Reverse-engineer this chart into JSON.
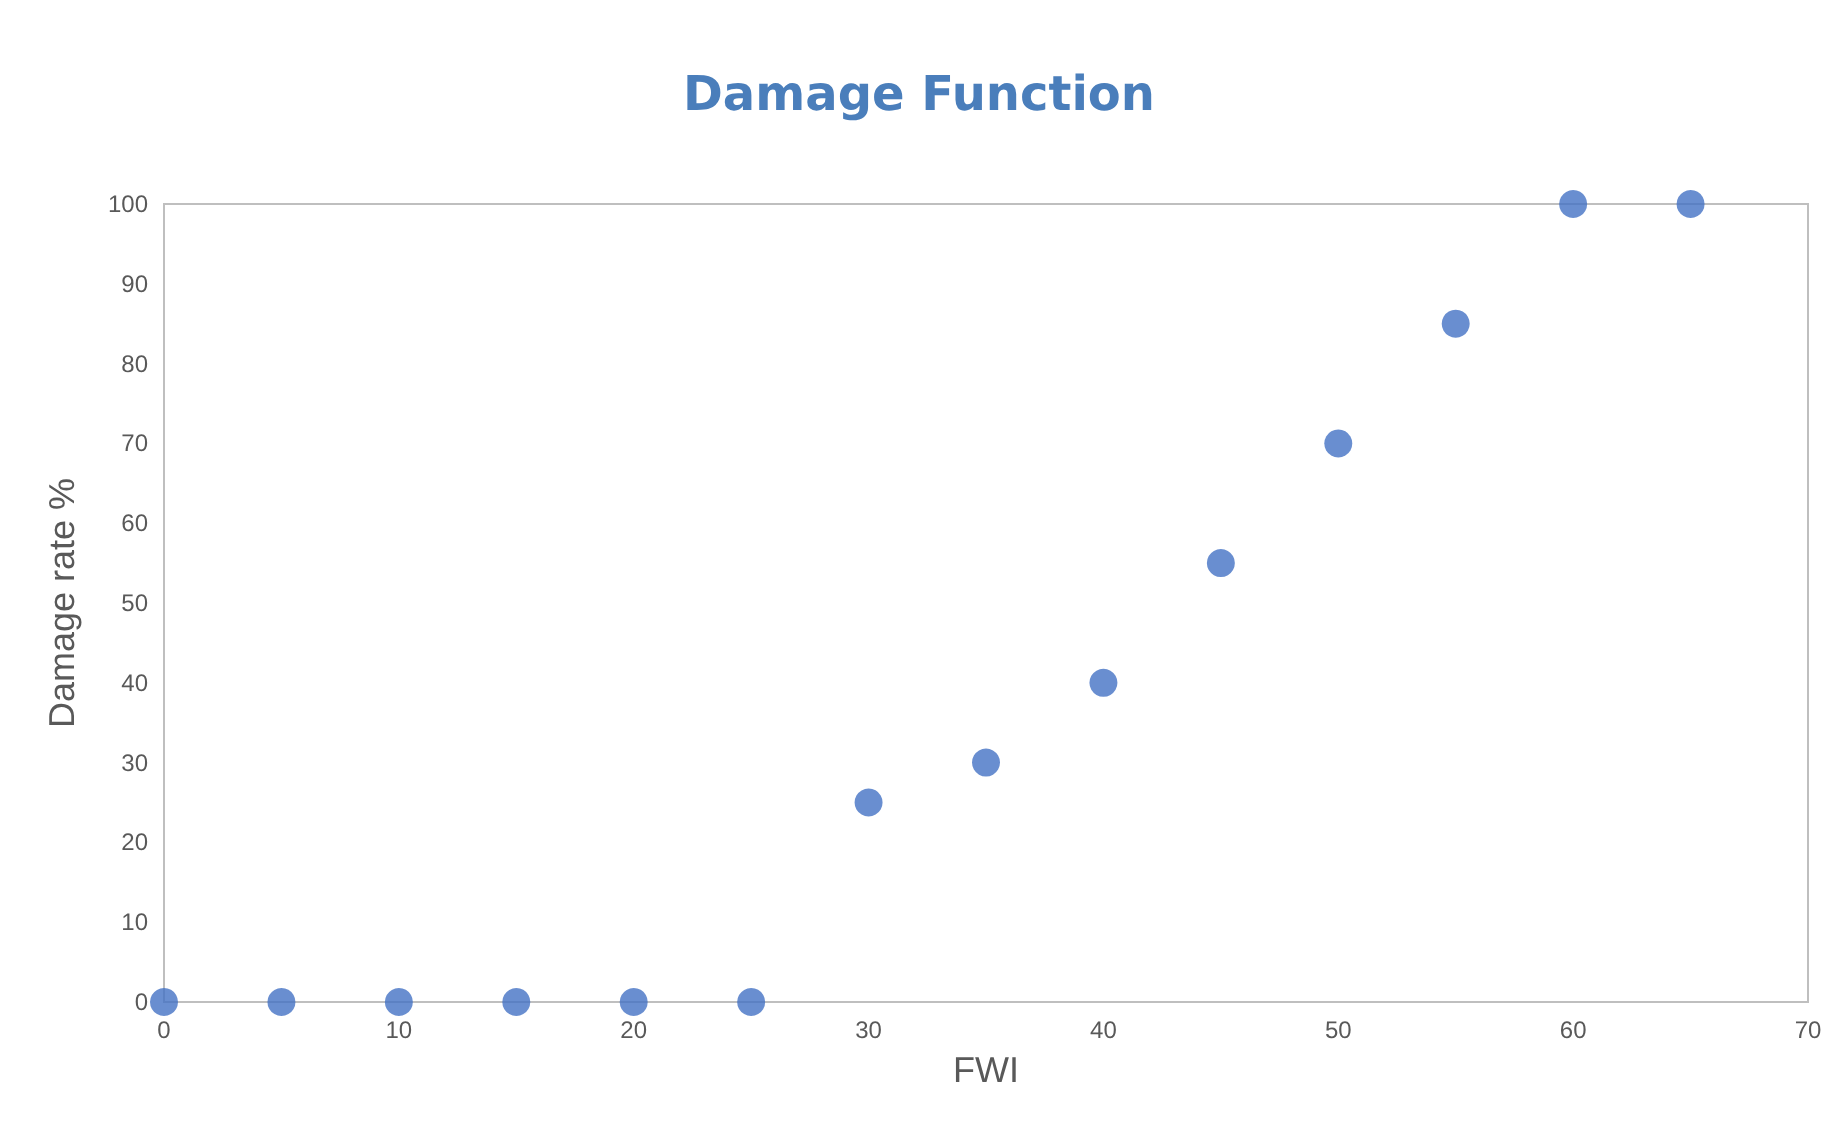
{
  "chart_data": {
    "type": "scatter",
    "title": "Damage Function",
    "xlabel": "FWI",
    "ylabel": "Damage rate %",
    "x": [
      0,
      5,
      10,
      15,
      20,
      25,
      30,
      35,
      40,
      45,
      50,
      55,
      60,
      65
    ],
    "series": [
      {
        "color": "#4472c4",
        "values": [
          0,
          0,
          0,
          0,
          0,
          0,
          25,
          30,
          40,
          55,
          70,
          85,
          100,
          100
        ]
      }
    ],
    "xlim": [
      0,
      70
    ],
    "xticks": [
      0,
      10,
      20,
      30,
      40,
      50,
      60,
      70
    ],
    "ylim": [
      0,
      100
    ],
    "yticks": [
      0,
      10,
      20,
      30,
      40,
      50,
      60,
      70,
      80,
      90,
      100
    ],
    "grid": false,
    "marker": "circle"
  }
}
